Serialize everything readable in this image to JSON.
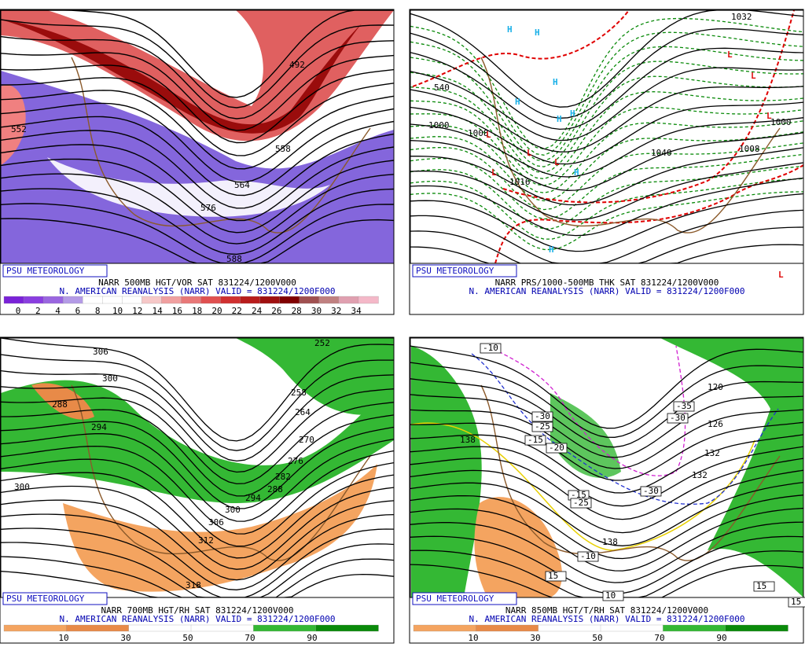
{
  "panels": [
    {
      "badge": "PSU METEOROLOGY",
      "caption": [
        "NARR 500MB HGT/VOR SAT 831224/1200V000",
        "N. AMERICAN REANALYSIS (NARR) VALID = 831224/1200F000"
      ],
      "colorbar_ticks": [
        0,
        2,
        4,
        6,
        8,
        10,
        12,
        14,
        16,
        18,
        20,
        22,
        24,
        26,
        28,
        30,
        32,
        34
      ],
      "labels": [
        "552",
        "492",
        "558",
        "564",
        "576",
        "588"
      ]
    },
    {
      "badge": "PSU METEOROLOGY",
      "caption": [
        "NARR PRS/1000-500MB THK SAT 831224/1200V000",
        "N. AMERICAN REANALYSIS (NARR) VALID = 831224/1200F000"
      ],
      "labels": [
        "1000",
        "1008",
        "1016",
        "540",
        "1040",
        "1008",
        "1000",
        "1032"
      ],
      "highs": [
        "H",
        "H",
        "H",
        "H",
        "H",
        "H",
        "H",
        "H"
      ],
      "lows": [
        "L",
        "L",
        "L",
        "L",
        "L",
        "L",
        "L",
        "L"
      ]
    },
    {
      "badge": "PSU METEOROLOGY",
      "caption": [
        "NARR 700MB HGT/RH SAT 831224/1200V000",
        "N. AMERICAN REANALYSIS (NARR) VALID = 831224/1200F000"
      ],
      "colorbar_ticks": [
        10,
        30,
        50,
        70,
        90
      ],
      "labels": [
        "306",
        "300",
        "288",
        "294",
        "300",
        "312",
        "318",
        "306",
        "300",
        "294",
        "288",
        "282",
        "276",
        "270",
        "264",
        "258",
        "252"
      ]
    },
    {
      "badge": "PSU METEOROLOGY",
      "caption": [
        "NARR 850MB HGT/T/RH SAT 831224/1200V000",
        "N. AMERICAN REANALYSIS (NARR) VALID = 831224/1200F000"
      ],
      "colorbar_ticks": [
        10,
        30,
        50,
        70,
        90
      ],
      "labels": [
        "138",
        "132",
        "126",
        "120",
        "132",
        "138"
      ],
      "boxed_labels": [
        "-10",
        "-30",
        "-25",
        "-15",
        "-20",
        "-35",
        "-30",
        "-30",
        "-15",
        "-25",
        "-10",
        "15",
        "15",
        "15",
        "10"
      ]
    }
  ]
}
